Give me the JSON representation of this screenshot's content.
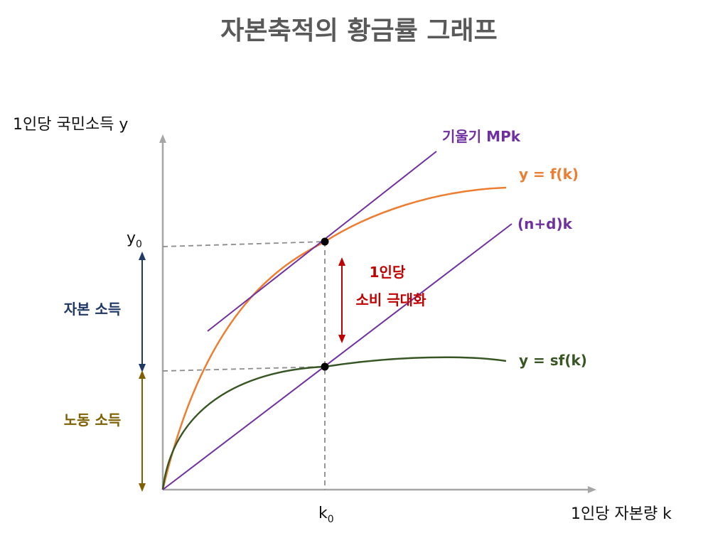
{
  "title": "자본축적의 황금률 그래프",
  "axes": {
    "y_label": "1인당 국민소득 y",
    "x_label": "1인당 자본량 k",
    "y_tick_base": "y",
    "y_tick_sub": "0",
    "x_tick_base": "k",
    "x_tick_sub": "0"
  },
  "curves": {
    "f_label": "y = f(k)",
    "sf_label": "y = sf(k)",
    "nd_label": "(n+d)k",
    "tangent_label": "기울기 MPk"
  },
  "annotations": {
    "consumption_line1": "1인당",
    "consumption_line2": "소비 극대화",
    "capital_income": "자본 소득",
    "labor_income": "노동 소득"
  },
  "colors": {
    "f_curve": "#ED7D31",
    "sf_curve": "#375623",
    "purple": "#7030A0",
    "red": "#C00000",
    "navy": "#1F3864",
    "gold": "#7F6000",
    "axis": "#A6A6A6"
  }
}
